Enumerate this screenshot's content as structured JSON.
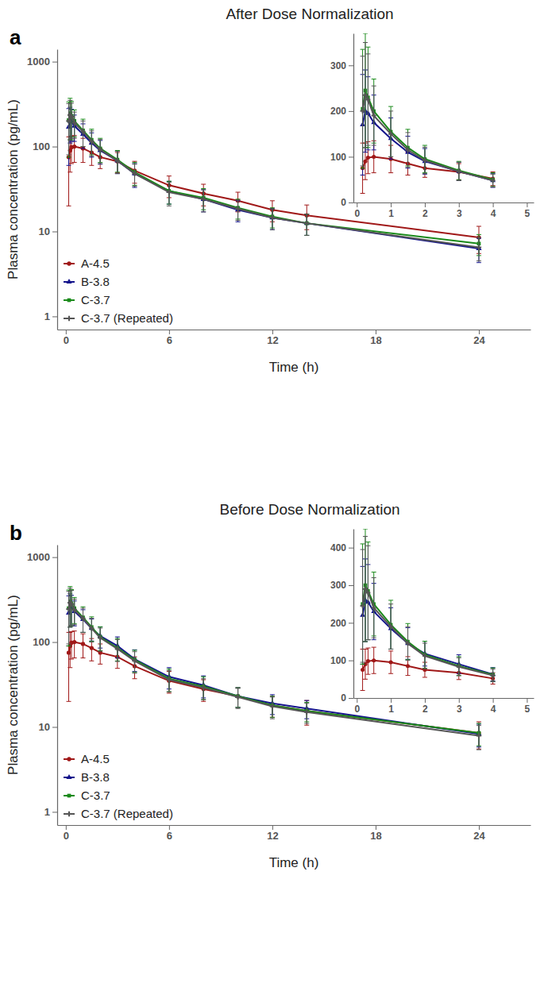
{
  "chart_data": [
    {
      "type": "line",
      "title": "After Dose Normalization",
      "annotations": [
        "a"
      ],
      "x_label": "Time (h)",
      "y_label": "Plasma concentration (pg/mL)",
      "log": "y",
      "legend": "lower left",
      "xlim": [
        -0.5,
        27
      ],
      "ylim": [
        0.7,
        1400
      ],
      "xticks": [
        0,
        6,
        12,
        18,
        24
      ],
      "yticks": [
        1,
        10,
        100,
        1000
      ],
      "x": [
        0.17,
        0.25,
        0.33,
        0.5,
        1,
        1.5,
        2,
        3,
        4,
        6,
        8,
        10,
        12,
        14,
        24
      ],
      "series": [
        {
          "name": "A-4.5",
          "color": "#a01818",
          "marker": "circle",
          "values": [
            75,
            90,
            98,
            100,
            95,
            85,
            75,
            67,
            52,
            35,
            28,
            23,
            18,
            15.5,
            8.5
          ],
          "errors": [
            55,
            40,
            35,
            35,
            30,
            25,
            20,
            18,
            15,
            10,
            8,
            6,
            5,
            5,
            3
          ]
        },
        {
          "name": "B-3.8",
          "color": "#14148c",
          "marker": "triangle",
          "values": [
            170,
            200,
            195,
            175,
            140,
            110,
            90,
            68,
            48,
            30,
            24,
            18,
            14.5,
            12.5,
            6.3
          ],
          "errors": [
            110,
            90,
            80,
            60,
            45,
            35,
            28,
            20,
            15,
            9,
            7,
            5,
            4,
            3.5,
            2
          ]
        },
        {
          "name": "C-3.7",
          "color": "#1a8a1a",
          "marker": "square",
          "values": [
            205,
            245,
            230,
            200,
            155,
            120,
            95,
            70,
            50,
            30,
            25,
            19,
            15,
            12.5,
            7.2
          ],
          "errors": [
            130,
            125,
            110,
            70,
            55,
            40,
            30,
            20,
            15,
            9,
            7,
            5,
            4,
            3.5,
            2
          ]
        },
        {
          "name": "C-3.7 (Repeated)",
          "color": "#555555",
          "marker": "cross",
          "values": [
            200,
            235,
            225,
            190,
            150,
            115,
            92,
            68,
            48,
            29,
            24,
            18.5,
            14.5,
            12.5,
            6.5
          ],
          "errors": [
            120,
            115,
            100,
            65,
            50,
            38,
            29,
            20,
            14,
            9,
            7,
            5,
            4,
            3.5,
            2
          ]
        }
      ]
    },
    {
      "type": "line",
      "xlim": [
        -0.1,
        5.2
      ],
      "ylim": [
        0,
        370
      ],
      "xticks": [
        0,
        1,
        2,
        3,
        4,
        5
      ],
      "yticks": [
        0,
        100,
        200,
        300
      ],
      "x": [
        0.17,
        0.25,
        0.33,
        0.5,
        1,
        1.5,
        2,
        3,
        4
      ],
      "series": [
        {
          "name": "A-4.5",
          "color": "#a01818",
          "marker": "circle",
          "values": [
            75,
            90,
            98,
            100,
            95,
            85,
            75,
            67,
            52
          ],
          "errors": [
            55,
            40,
            35,
            35,
            30,
            25,
            20,
            18,
            15
          ]
        },
        {
          "name": "B-3.8",
          "color": "#14148c",
          "marker": "triangle",
          "values": [
            170,
            200,
            195,
            175,
            140,
            110,
            90,
            68,
            48
          ],
          "errors": [
            110,
            90,
            80,
            60,
            45,
            35,
            28,
            20,
            15
          ]
        },
        {
          "name": "C-3.7",
          "color": "#1a8a1a",
          "marker": "square",
          "values": [
            205,
            245,
            230,
            200,
            155,
            120,
            95,
            70,
            50
          ],
          "errors": [
            130,
            125,
            110,
            70,
            55,
            40,
            30,
            20,
            15
          ]
        },
        {
          "name": "C-3.7 (Repeated)",
          "color": "#555555",
          "marker": "cross",
          "values": [
            200,
            235,
            225,
            190,
            150,
            115,
            92,
            68,
            48
          ],
          "errors": [
            120,
            115,
            100,
            65,
            50,
            38,
            29,
            20,
            14
          ]
        }
      ]
    },
    {
      "type": "line",
      "title": "Before Dose Normalization",
      "annotations": [
        "b"
      ],
      "x_label": "Time (h)",
      "y_label": "Plasma concentration (pg/mL)",
      "log": "y",
      "legend": "lower left",
      "xlim": [
        -0.5,
        27
      ],
      "ylim": [
        0.7,
        1400
      ],
      "xticks": [
        0,
        6,
        12,
        18,
        24
      ],
      "yticks": [
        1,
        10,
        100,
        1000
      ],
      "x": [
        0.17,
        0.25,
        0.33,
        0.5,
        1,
        1.5,
        2,
        3,
        4,
        6,
        8,
        10,
        12,
        14,
        24
      ],
      "series": [
        {
          "name": "A-4.5",
          "color": "#a01818",
          "marker": "circle",
          "values": [
            75,
            90,
            98,
            100,
            95,
            85,
            75,
            67,
            52,
            35,
            28,
            23,
            18,
            15.5,
            8.5
          ],
          "errors": [
            55,
            40,
            35,
            35,
            30,
            25,
            20,
            18,
            15,
            10,
            8,
            6,
            5,
            5,
            3
          ]
        },
        {
          "name": "B-3.8",
          "color": "#14148c",
          "marker": "triangle",
          "values": [
            220,
            260,
            255,
            230,
            185,
            145,
            118,
            90,
            63,
            39,
            31,
            23,
            19,
            16.5,
            8.3
          ],
          "errors": [
            130,
            110,
            100,
            75,
            55,
            42,
            33,
            25,
            18,
            11,
            9,
            6,
            5,
            4,
            2.5
          ]
        },
        {
          "name": "C-3.7",
          "color": "#1a8a1a",
          "marker": "square",
          "values": [
            250,
            300,
            285,
            250,
            195,
            150,
            115,
            85,
            62,
            37,
            30,
            23,
            18,
            15.5,
            8.5
          ],
          "errors": [
            160,
            150,
            130,
            85,
            65,
            48,
            36,
            25,
            18,
            11,
            9,
            6,
            5,
            4,
            2.5
          ]
        },
        {
          "name": "C-3.7 (Repeated)",
          "color": "#555555",
          "marker": "cross",
          "values": [
            245,
            290,
            280,
            240,
            190,
            145,
            112,
            83,
            60,
            36,
            29,
            22.5,
            17.5,
            15,
            7.9
          ],
          "errors": [
            150,
            140,
            125,
            80,
            60,
            45,
            34,
            24,
            17,
            10,
            8,
            6,
            5,
            4,
            2.5
          ]
        }
      ]
    },
    {
      "type": "line",
      "xlim": [
        -0.1,
        5.2
      ],
      "ylim": [
        0,
        450
      ],
      "xticks": [
        0,
        1,
        2,
        3,
        4,
        5
      ],
      "yticks": [
        0,
        100,
        200,
        300,
        400
      ],
      "x": [
        0.17,
        0.25,
        0.33,
        0.5,
        1,
        1.5,
        2,
        3,
        4
      ],
      "series": [
        {
          "name": "A-4.5",
          "color": "#a01818",
          "marker": "circle",
          "values": [
            75,
            90,
            98,
            100,
            95,
            85,
            75,
            67,
            52
          ],
          "errors": [
            55,
            40,
            35,
            35,
            30,
            25,
            20,
            18,
            15
          ]
        },
        {
          "name": "B-3.8",
          "color": "#14148c",
          "marker": "triangle",
          "values": [
            220,
            260,
            255,
            230,
            185,
            145,
            118,
            90,
            63
          ],
          "errors": [
            130,
            110,
            100,
            75,
            55,
            42,
            33,
            25,
            18
          ]
        },
        {
          "name": "C-3.7",
          "color": "#1a8a1a",
          "marker": "square",
          "values": [
            250,
            300,
            285,
            250,
            195,
            150,
            115,
            85,
            62
          ],
          "errors": [
            160,
            150,
            130,
            85,
            65,
            48,
            36,
            25,
            18
          ]
        },
        {
          "name": "C-3.7 (Repeated)",
          "color": "#555555",
          "marker": "cross",
          "values": [
            245,
            290,
            280,
            240,
            190,
            145,
            112,
            83,
            60
          ],
          "errors": [
            150,
            140,
            125,
            80,
            60,
            45,
            34,
            24,
            17
          ]
        }
      ]
    }
  ]
}
